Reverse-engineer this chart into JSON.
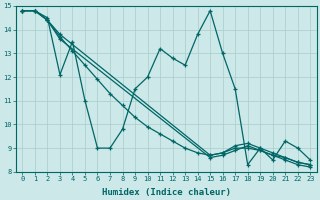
{
  "xlabel": "Humidex (Indice chaleur)",
  "xlim": [
    -0.5,
    23.5
  ],
  "ylim": [
    8,
    15
  ],
  "xticks": [
    0,
    1,
    2,
    3,
    4,
    5,
    6,
    7,
    8,
    9,
    10,
    11,
    12,
    13,
    14,
    15,
    16,
    17,
    18,
    19,
    20,
    21,
    22,
    23
  ],
  "yticks": [
    8,
    9,
    10,
    11,
    12,
    13,
    14,
    15
  ],
  "bg_color": "#cce8e8",
  "grid_color": "#aacccc",
  "line_color": "#006666",
  "line1_x": [
    0,
    1,
    2,
    3,
    4,
    5,
    6,
    7,
    8,
    9,
    10,
    11,
    12,
    13,
    14,
    15,
    16,
    17,
    18,
    19,
    20,
    21,
    22,
    23
  ],
  "line1_y": [
    14.8,
    14.8,
    14.5,
    12.1,
    13.5,
    11.0,
    9.0,
    9.0,
    9.8,
    11.5,
    12.0,
    13.2,
    12.8,
    12.5,
    13.8,
    14.8,
    13.0,
    11.5,
    8.3,
    9.0,
    8.5,
    9.3,
    9.0,
    8.5
  ],
  "line2_x": [
    0,
    1,
    2,
    3,
    15,
    16,
    17,
    18,
    19,
    20,
    21,
    22,
    23
  ],
  "line2_y": [
    14.8,
    14.8,
    14.4,
    13.8,
    8.7,
    8.8,
    9.1,
    9.2,
    9.0,
    8.8,
    8.6,
    8.4,
    8.3
  ],
  "line3_x": [
    0,
    1,
    2,
    3,
    15,
    16,
    17,
    18,
    19,
    20,
    21,
    22,
    23
  ],
  "line3_y": [
    14.8,
    14.8,
    14.4,
    13.6,
    8.6,
    8.7,
    8.9,
    9.1,
    8.9,
    8.7,
    8.5,
    8.3,
    8.2
  ],
  "line4_x": [
    0,
    1,
    2,
    3,
    4,
    5,
    6,
    7,
    8,
    9,
    10,
    11,
    12,
    13,
    14,
    15,
    16,
    17,
    18,
    19,
    20,
    21,
    22,
    23
  ],
  "line4_y": [
    14.8,
    14.8,
    14.4,
    13.7,
    13.1,
    12.5,
    11.9,
    11.3,
    10.8,
    10.3,
    9.9,
    9.6,
    9.3,
    9.0,
    8.8,
    8.7,
    8.8,
    9.0,
    9.0,
    8.9,
    8.7,
    8.6,
    8.4,
    8.3
  ]
}
